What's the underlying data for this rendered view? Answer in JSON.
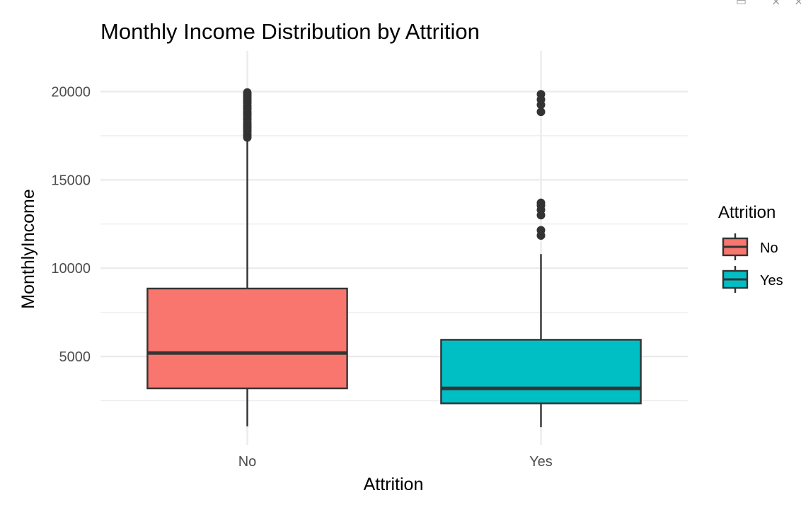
{
  "chart_data": {
    "type": "box",
    "title": "Monthly Income Distribution by Attrition",
    "xlabel": "Attrition",
    "ylabel": "MonthlyIncome",
    "categories": [
      "No",
      "Yes"
    ],
    "ylim": [
      0,
      22300
    ],
    "yticks": [
      5000,
      10000,
      15000,
      20000
    ],
    "grid": true,
    "legend": {
      "title": "Attrition",
      "position": "right",
      "entries": [
        "No",
        "Yes"
      ]
    },
    "colors": {
      "No": "#F8766D",
      "Yes": "#00BFC4",
      "outline": "#333333",
      "grid": "#ebebeb"
    },
    "boxes": [
      {
        "category": "No",
        "min": 1050,
        "q1": 3200,
        "median": 5200,
        "q3": 8850,
        "max": 17300,
        "outliers": [
          17400,
          17500,
          17600,
          17750,
          17850,
          17950,
          18050,
          18150,
          18250,
          18400,
          18500,
          18650,
          18750,
          18850,
          19000,
          19100,
          19200,
          19350,
          19450,
          19550,
          19650,
          19750,
          19850,
          19950
        ]
      },
      {
        "category": "Yes",
        "min": 1000,
        "q1": 2350,
        "median": 3200,
        "q3": 5950,
        "max": 10800,
        "outliers": [
          11850,
          12150,
          13000,
          13300,
          13550,
          13700,
          18850,
          19250,
          19550,
          19850
        ]
      }
    ]
  }
}
